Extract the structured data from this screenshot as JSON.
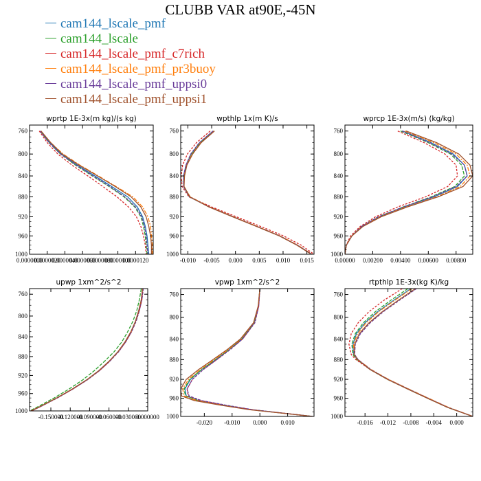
{
  "title": "CLUBB VAR at90E,-45N",
  "legend": [
    {
      "label": "cam144_lscale_pmf",
      "color": "#1f77b4"
    },
    {
      "label": "cam144_lscale",
      "color": "#2ca02c"
    },
    {
      "label": "cam144_lscale_pmf_c7rich",
      "color": "#d62728"
    },
    {
      "label": "cam144_lscale_pmf_pr3buoy",
      "color": "#ff7f0e"
    },
    {
      "label": "cam144_lscale_pmf_uppsi0",
      "color": "#6a3d9a"
    },
    {
      "label": "cam144_lscale_pmf_uppsi1",
      "color": "#a0522d"
    }
  ],
  "chart_data": [
    {
      "type": "line",
      "title": "wprtp  1E-3x(m kg)/(s kg)",
      "xlim": [
        0.0,
        1.4e-05
      ],
      "ylim": [
        1000,
        750
      ],
      "ylog": true,
      "xticks": [
        0.0,
        2e-06,
        4e-06,
        6e-06,
        8e-06,
        1e-05,
        1.2e-05
      ],
      "xtick_labels": [
        "0.0000000",
        "0.0000020",
        "0.0000040",
        "0.0000060",
        "0.0000080",
        "0.0000100",
        "0.0000120"
      ],
      "yticks": [
        760,
        800,
        840,
        880,
        920,
        960,
        1000
      ],
      "pressure": [
        760,
        780,
        800,
        820,
        840,
        860,
        880,
        900,
        920,
        940,
        960,
        980,
        1000
      ],
      "series": [
        {
          "color": "#1f77b4",
          "values": [
            1.2e-06,
            2.3e-06,
            3.6e-06,
            5.4e-06,
            7.4e-06,
            9.3e-06,
            1.11e-05,
            1.22e-05,
            1.28e-05,
            1.31e-05,
            1.33e-05,
            1.34e-05,
            1.35e-05
          ]
        },
        {
          "color": "#2ca02c",
          "values": [
            1.2e-06,
            2.2e-06,
            3.5e-06,
            5.2e-06,
            7.1e-06,
            9e-06,
            1.07e-05,
            1.19e-05,
            1.26e-05,
            1.29e-05,
            1.31e-05,
            1.32e-05,
            1.33e-05
          ]
        },
        {
          "color": "#d62728",
          "values": [
            1.1e-06,
            2e-06,
            3.2e-06,
            4.8e-06,
            6.6e-06,
            8.3e-06,
            9.9e-06,
            1.12e-05,
            1.21e-05,
            1.26e-05,
            1.29e-05,
            1.31e-05,
            1.32e-05
          ]
        },
        {
          "color": "#ff7f0e",
          "values": [
            1.3e-06,
            2.4e-06,
            3.8e-06,
            5.7e-06,
            7.8e-06,
            9.8e-06,
            1.17e-05,
            1.28e-05,
            1.34e-05,
            1.37e-05,
            1.38e-05,
            1.39e-05,
            1.39e-05
          ]
        },
        {
          "color": "#6a3d9a",
          "values": [
            1.2e-06,
            2.2e-06,
            3.5e-06,
            5.3e-06,
            7.2e-06,
            9.1e-06,
            1.08e-05,
            1.2e-05,
            1.27e-05,
            1.3e-05,
            1.32e-05,
            1.33e-05,
            1.34e-05
          ]
        },
        {
          "color": "#a0522d",
          "values": [
            1.3e-06,
            2.4e-06,
            3.7e-06,
            5.6e-06,
            7.7e-06,
            9.7e-06,
            1.15e-05,
            1.26e-05,
            1.32e-05,
            1.35e-05,
            1.37e-05,
            1.38e-05,
            1.38e-05
          ]
        }
      ]
    },
    {
      "type": "line",
      "title": "wpthlp  1x(m K)/s",
      "xlim": [
        -0.0115,
        0.0165
      ],
      "ylim": [
        1000,
        750
      ],
      "ylog": true,
      "xticks": [
        -0.01,
        -0.005,
        0.0,
        0.005,
        0.01,
        0.015
      ],
      "xtick_labels": [
        "-0.010",
        "-0.005",
        "0.000",
        "0.005",
        "0.010",
        "0.015"
      ],
      "yticks": [
        760,
        800,
        840,
        880,
        920,
        960,
        1000
      ],
      "pressure": [
        760,
        780,
        800,
        820,
        840,
        860,
        880,
        900,
        920,
        940,
        960,
        980,
        1000
      ],
      "series": [
        {
          "color": "#1f77b4",
          "values": [
            -0.0047,
            -0.0075,
            -0.0093,
            -0.0104,
            -0.0109,
            -0.0109,
            -0.0097,
            -0.0055,
            -0.0005,
            0.0045,
            0.0093,
            0.013,
            0.016
          ]
        },
        {
          "color": "#2ca02c",
          "values": [
            -0.0046,
            -0.0074,
            -0.0092,
            -0.0103,
            -0.0108,
            -0.0108,
            -0.0096,
            -0.0055,
            -0.0005,
            0.0045,
            0.0093,
            0.013,
            0.016
          ]
        },
        {
          "color": "#d62728",
          "values": [
            -0.0053,
            -0.0082,
            -0.0101,
            -0.0111,
            -0.0114,
            -0.0112,
            -0.0098,
            -0.005,
            0.0002,
            0.0053,
            0.0101,
            0.0138,
            0.0165
          ]
        },
        {
          "color": "#ff7f0e",
          "values": [
            -0.0045,
            -0.0073,
            -0.0091,
            -0.0103,
            -0.0108,
            -0.0108,
            -0.0095,
            -0.0054,
            -0.0004,
            0.0046,
            0.0094,
            0.0131,
            0.0161
          ]
        },
        {
          "color": "#6a3d9a",
          "values": [
            -0.0047,
            -0.0076,
            -0.0094,
            -0.0104,
            -0.0109,
            -0.0109,
            -0.0096,
            -0.0055,
            -0.0005,
            0.0045,
            0.0093,
            0.013,
            0.016
          ]
        },
        {
          "color": "#a0522d",
          "values": [
            -0.0044,
            -0.0072,
            -0.009,
            -0.0102,
            -0.0107,
            -0.0108,
            -0.0096,
            -0.0056,
            -0.0006,
            0.0044,
            0.0092,
            0.0129,
            0.0159
          ]
        }
      ]
    },
    {
      "type": "line",
      "title": "wprcp  1E-3x(m/s) (kg/kg)",
      "xlim": [
        0.0,
        0.0092
      ],
      "ylim": [
        1000,
        750
      ],
      "ylog": true,
      "xticks": [
        0.0,
        0.002,
        0.004,
        0.006,
        0.008
      ],
      "xtick_labels": [
        "0.00000",
        "0.00200",
        "0.00400",
        "0.00600",
        "0.00800"
      ],
      "yticks": [
        760,
        800,
        840,
        880,
        920,
        960,
        1000
      ],
      "pressure": [
        760,
        780,
        800,
        820,
        840,
        860,
        880,
        900,
        920,
        940,
        960,
        980,
        1000
      ],
      "series": [
        {
          "color": "#1f77b4",
          "values": [
            0.00415,
            0.0062,
            0.0078,
            0.0086,
            0.0088,
            0.0081,
            0.0064,
            0.0043,
            0.0025,
            0.0012,
            0.0005,
            0.0001,
            0.0
          ]
        },
        {
          "color": "#2ca02c",
          "values": [
            0.004,
            0.006,
            0.0076,
            0.0084,
            0.0086,
            0.0079,
            0.0062,
            0.0042,
            0.0024,
            0.0012,
            0.0005,
            0.0001,
            0.0
          ]
        },
        {
          "color": "#d62728",
          "values": [
            0.0038,
            0.0057,
            0.0072,
            0.008,
            0.0081,
            0.0074,
            0.0058,
            0.0038,
            0.0022,
            0.0011,
            0.0004,
            0.0001,
            0.0
          ]
        },
        {
          "color": "#ff7f0e",
          "values": [
            0.0043,
            0.0064,
            0.008,
            0.0088,
            0.009,
            0.0083,
            0.0066,
            0.0044,
            0.0025,
            0.0012,
            0.0005,
            0.0001,
            0.0
          ]
        },
        {
          "color": "#6a3d9a",
          "values": [
            0.0041,
            0.0061,
            0.0077,
            0.0086,
            0.0088,
            0.008,
            0.0063,
            0.0042,
            0.0024,
            0.0012,
            0.0005,
            0.0001,
            0.0
          ]
        },
        {
          "color": "#a0522d",
          "values": [
            0.0044,
            0.0066,
            0.0082,
            0.009,
            0.0092,
            0.0085,
            0.0067,
            0.0045,
            0.0026,
            0.0013,
            0.0005,
            0.0001,
            0.0
          ]
        }
      ]
    },
    {
      "type": "line",
      "title": "upwp  1xm^2/s^2",
      "xlim": [
        -0.183,
        0.0
      ],
      "ylim": [
        1000,
        750
      ],
      "ylog": true,
      "xticks": [
        -0.15,
        -0.12,
        -0.09,
        -0.06,
        -0.03,
        0.0
      ],
      "xtick_labels": [
        "-0.150000",
        "-0.120000",
        "-0.090000",
        "-0.060000",
        "-0.030000",
        "0.000000"
      ],
      "yticks": [
        760,
        800,
        840,
        880,
        920,
        960,
        1000
      ],
      "pressure": [
        750,
        770,
        790,
        810,
        830,
        850,
        870,
        890,
        910,
        930,
        950,
        970,
        990,
        1000
      ],
      "series": [
        {
          "color": "#1f77b4",
          "values": [
            -0.008,
            -0.01,
            -0.014,
            -0.019,
            -0.026,
            -0.035,
            -0.046,
            -0.06,
            -0.076,
            -0.095,
            -0.117,
            -0.141,
            -0.167,
            -0.181
          ]
        },
        {
          "color": "#2ca02c",
          "values": [
            -0.01,
            -0.013,
            -0.017,
            -0.023,
            -0.031,
            -0.04,
            -0.052,
            -0.067,
            -0.083,
            -0.101,
            -0.122,
            -0.145,
            -0.17,
            -0.183
          ]
        },
        {
          "color": "#d62728",
          "values": [
            -0.007,
            -0.009,
            -0.013,
            -0.018,
            -0.025,
            -0.034,
            -0.045,
            -0.059,
            -0.075,
            -0.094,
            -0.116,
            -0.14,
            -0.166,
            -0.18
          ]
        },
        {
          "color": "#ff7f0e",
          "values": [
            -0.008,
            -0.01,
            -0.014,
            -0.019,
            -0.026,
            -0.035,
            -0.046,
            -0.06,
            -0.076,
            -0.095,
            -0.117,
            -0.141,
            -0.167,
            -0.181
          ]
        },
        {
          "color": "#6a3d9a",
          "values": [
            -0.007,
            -0.009,
            -0.013,
            -0.018,
            -0.025,
            -0.034,
            -0.045,
            -0.059,
            -0.075,
            -0.094,
            -0.116,
            -0.14,
            -0.166,
            -0.18
          ]
        },
        {
          "color": "#a0522d",
          "values": [
            -0.008,
            -0.01,
            -0.014,
            -0.019,
            -0.026,
            -0.035,
            -0.046,
            -0.06,
            -0.076,
            -0.095,
            -0.117,
            -0.141,
            -0.167,
            -0.181
          ]
        }
      ]
    },
    {
      "type": "line",
      "title": "vpwp  1xm^2/s^2",
      "xlim": [
        -0.0285,
        0.0195
      ],
      "ylim": [
        1000,
        750
      ],
      "ylog": true,
      "xticks": [
        -0.02,
        -0.01,
        0.0,
        0.01
      ],
      "xtick_labels": [
        "-0.020",
        "-0.010",
        "0.000",
        "0.010"
      ],
      "yticks": [
        760,
        800,
        840,
        880,
        920,
        960,
        1000
      ],
      "pressure": [
        750,
        780,
        810,
        840,
        860,
        880,
        900,
        920,
        940,
        955,
        965,
        975,
        985,
        1000
      ],
      "series": [
        {
          "color": "#1f77b4",
          "values": [
            0.0,
            -0.0005,
            -0.002,
            -0.0065,
            -0.011,
            -0.016,
            -0.021,
            -0.025,
            -0.027,
            -0.0265,
            -0.022,
            -0.013,
            -0.003,
            0.019
          ]
        },
        {
          "color": "#2ca02c",
          "values": [
            0.0,
            -0.0005,
            -0.002,
            -0.0065,
            -0.011,
            -0.016,
            -0.021,
            -0.0252,
            -0.0273,
            -0.0268,
            -0.0223,
            -0.0133,
            -0.0032,
            0.019
          ]
        },
        {
          "color": "#d62728",
          "values": [
            0.0,
            -0.0004,
            -0.0018,
            -0.0062,
            -0.0106,
            -0.0155,
            -0.0204,
            -0.0243,
            -0.0262,
            -0.0258,
            -0.0215,
            -0.0127,
            -0.0028,
            0.019
          ]
        },
        {
          "color": "#ff7f0e",
          "values": [
            0.0,
            -0.0006,
            -0.0022,
            -0.0068,
            -0.0113,
            -0.0164,
            -0.0215,
            -0.0257,
            -0.0278,
            -0.0273,
            -0.0227,
            -0.0136,
            -0.0034,
            0.019
          ]
        },
        {
          "color": "#6a3d9a",
          "values": [
            0.0,
            -0.0004,
            -0.0018,
            -0.0062,
            -0.0106,
            -0.0155,
            -0.0204,
            -0.0243,
            -0.0262,
            -0.0255,
            -0.021,
            -0.0122,
            -0.0025,
            0.019
          ]
        },
        {
          "color": "#a0522d",
          "values": [
            0.0,
            -0.0006,
            -0.0023,
            -0.007,
            -0.0117,
            -0.0169,
            -0.0221,
            -0.0265,
            -0.0285,
            -0.0282,
            -0.0236,
            -0.0142,
            -0.0038,
            0.019
          ]
        }
      ]
    },
    {
      "type": "line",
      "title": "rtpthlp  1E-3x(kg K)/kg",
      "xlim": [
        -0.0195,
        0.0028
      ],
      "ylim": [
        1000,
        750
      ],
      "ylog": true,
      "xticks": [
        -0.016,
        -0.012,
        -0.008,
        -0.004,
        0.0
      ],
      "xtick_labels": [
        "-0.016",
        "-0.012",
        "-0.008",
        "-0.004",
        "0.000"
      ],
      "yticks": [
        760,
        800,
        840,
        880,
        920,
        960,
        1000
      ],
      "pressure": [
        750,
        770,
        790,
        810,
        830,
        850,
        870,
        880,
        900,
        920,
        940,
        960,
        980,
        1000
      ],
      "series": [
        {
          "color": "#1f77b4",
          "values": [
            -0.008,
            -0.011,
            -0.0138,
            -0.016,
            -0.0175,
            -0.0181,
            -0.018,
            -0.0173,
            -0.015,
            -0.012,
            -0.0085,
            -0.005,
            -0.0015,
            0.0028
          ]
        },
        {
          "color": "#2ca02c",
          "values": [
            -0.0085,
            -0.0115,
            -0.0142,
            -0.0163,
            -0.0177,
            -0.0183,
            -0.0181,
            -0.0174,
            -0.0151,
            -0.0121,
            -0.0086,
            -0.0051,
            -0.0016,
            0.0028
          ]
        },
        {
          "color": "#d62728",
          "values": [
            -0.0095,
            -0.0127,
            -0.0153,
            -0.0172,
            -0.0184,
            -0.0188,
            -0.0184,
            -0.0176,
            -0.0151,
            -0.012,
            -0.0085,
            -0.005,
            -0.0015,
            0.0028
          ]
        },
        {
          "color": "#ff7f0e",
          "values": [
            -0.0078,
            -0.0108,
            -0.0136,
            -0.0158,
            -0.0173,
            -0.018,
            -0.0179,
            -0.0172,
            -0.0149,
            -0.0119,
            -0.0084,
            -0.0049,
            -0.0014,
            0.0028
          ]
        },
        {
          "color": "#6a3d9a",
          "values": [
            -0.007,
            -0.01,
            -0.0128,
            -0.0151,
            -0.0168,
            -0.0177,
            -0.0178,
            -0.0172,
            -0.015,
            -0.012,
            -0.0085,
            -0.005,
            -0.0015,
            0.0028
          ]
        },
        {
          "color": "#a0522d",
          "values": [
            -0.0072,
            -0.0102,
            -0.013,
            -0.0153,
            -0.017,
            -0.0178,
            -0.0179,
            -0.0173,
            -0.0151,
            -0.0121,
            -0.0086,
            -0.0051,
            -0.0016,
            0.0028
          ]
        }
      ]
    }
  ]
}
